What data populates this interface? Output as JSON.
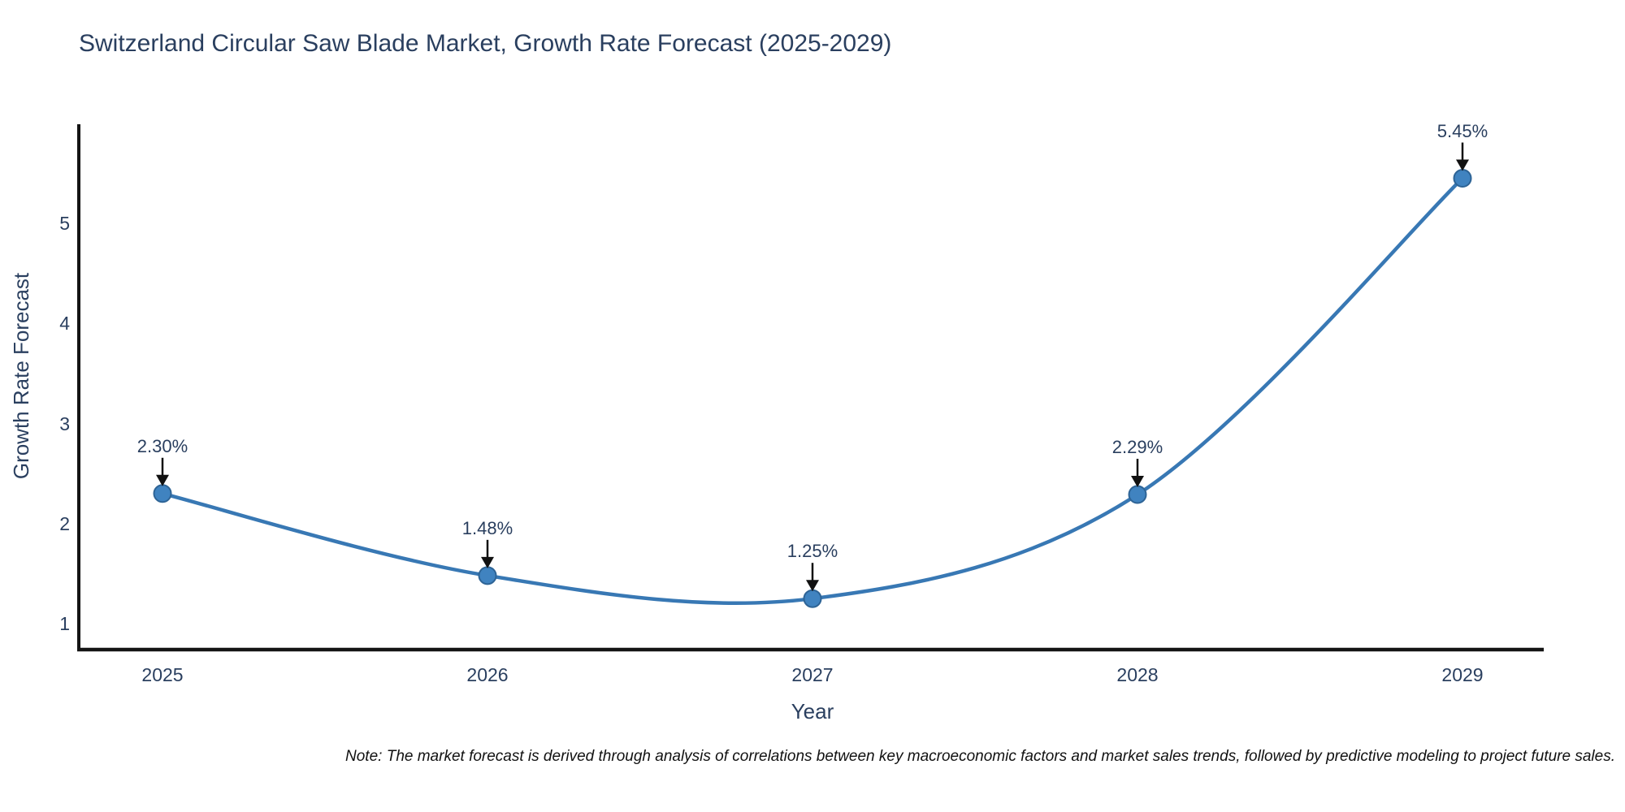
{
  "note": "Note: The market forecast is derived through analysis of correlations between key macroeconomic factors and market sales trends, followed by predictive modeling to project future sales.",
  "chart_data": {
    "type": "line",
    "title": "Switzerland Circular Saw Blade Market, Growth Rate Forecast (2025-2029)",
    "xlabel": "Year",
    "ylabel": "Growth Rate Forecast",
    "x": [
      2025,
      2026,
      2027,
      2028,
      2029
    ],
    "x_tick_labels": [
      "2025",
      "2026",
      "2027",
      "2028",
      "2029"
    ],
    "yticks": [
      1,
      2,
      3,
      4,
      5
    ],
    "ylim": [
      0.74,
      5.99
    ],
    "xlim": [
      2024.74,
      2029.25
    ],
    "grid": false,
    "legend": false,
    "line_shape": "spline",
    "series": [
      {
        "name": "Growth Rate Forecast",
        "values": [
          2.3,
          1.48,
          1.25,
          2.29,
          5.45
        ],
        "point_labels": [
          "2.30%",
          "1.48%",
          "1.25%",
          "2.29%",
          "5.45%"
        ]
      }
    ],
    "colors": {
      "line": "#3878b4",
      "marker": "#4083c0",
      "marker_edge": "#2e6496",
      "axis_text": "#2a3f5f",
      "spine": "#141414",
      "arrow": "#111111",
      "background": "#ffffff"
    }
  }
}
